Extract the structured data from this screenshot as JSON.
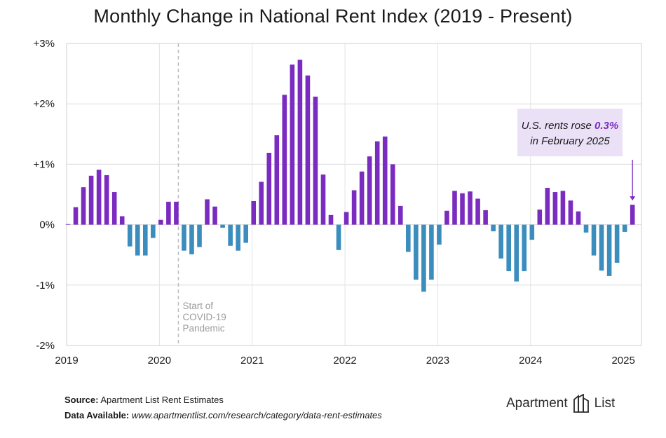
{
  "chart_data": {
    "type": "bar",
    "title": "Monthly Change in National Rent Index (2019 - Present)",
    "xlabel": "",
    "ylabel": "",
    "ylim": [
      -2,
      3
    ],
    "y_ticks": [
      3,
      2,
      1,
      0,
      -1,
      -2
    ],
    "y_tick_labels": [
      "+3%",
      "+2%",
      "+1%",
      "0%",
      "-1%",
      "-2%"
    ],
    "x_tick_labels": [
      "2019",
      "2020",
      "2021",
      "2022",
      "2023",
      "2024",
      "2025"
    ],
    "grid": true,
    "colors": {
      "positive": "#7b2cc0",
      "negative": "#3a8dbd"
    },
    "start_month": "2019-01",
    "values": [
      0.0,
      0.29,
      0.62,
      0.81,
      0.91,
      0.82,
      0.54,
      0.14,
      -0.36,
      -0.51,
      -0.51,
      -0.22,
      0.08,
      0.38,
      0.38,
      -0.43,
      -0.49,
      -0.37,
      0.42,
      0.3,
      -0.05,
      -0.35,
      -0.43,
      -0.3,
      0.39,
      0.71,
      1.19,
      1.48,
      2.15,
      2.65,
      2.73,
      2.47,
      2.12,
      0.83,
      0.16,
      -0.42,
      0.21,
      0.57,
      0.88,
      1.13,
      1.38,
      1.46,
      1.0,
      0.31,
      -0.45,
      -0.91,
      -1.11,
      -0.91,
      -0.33,
      0.23,
      0.56,
      0.52,
      0.55,
      0.43,
      0.24,
      -0.11,
      -0.56,
      -0.77,
      -0.94,
      -0.77,
      -0.25,
      0.25,
      0.61,
      0.54,
      0.56,
      0.4,
      0.22,
      -0.13,
      -0.51,
      -0.76,
      -0.85,
      -0.63,
      -0.12,
      0.33
    ],
    "event_marker": {
      "month": "2020-04",
      "label_lines": [
        "Start of",
        "COVID-19",
        "Pandemic"
      ]
    },
    "annotation": {
      "text_before": "U.S. rents rose",
      "highlight": "0.3%",
      "text_after": "in February 2025",
      "month": "2025-02"
    }
  },
  "footer": {
    "source_label": "Source:",
    "source_text": "Apartment List Rent Estimates",
    "data_label": "Data Available:",
    "data_url": "www.apartmentlist.com/research/category/data-rent-estimates"
  },
  "logo": {
    "word1": "Apartment",
    "word2": "List"
  }
}
